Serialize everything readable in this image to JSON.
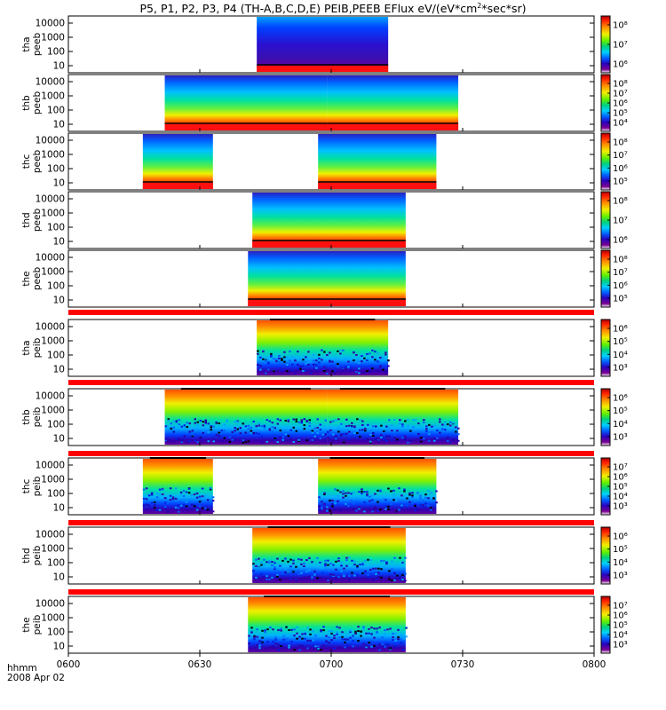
{
  "title": "P5, P1, P2, P3, P4 (TH-A,B,C,D,E) PEIB,PEEB EFlux eV/(eV*cm",
  "title_sup": "2",
  "title_end": "*sec*sr)",
  "xaxis": {
    "unit_label": "hhmm",
    "date_label": "2008 Apr 02",
    "range_minutes": [
      0,
      120
    ],
    "ticks": [
      {
        "label": "0600",
        "minute": 0
      },
      {
        "label": "0630",
        "minute": 30
      },
      {
        "label": "0700",
        "minute": 60
      },
      {
        "label": "0730",
        "minute": 90
      },
      {
        "label": "0800",
        "minute": 120
      }
    ]
  },
  "colors": {
    "spectrum": [
      "#ffffff",
      "#7a0090",
      "#2a00d0",
      "#0040ff",
      "#00a0ff",
      "#00e0e0",
      "#00d040",
      "#80f000",
      "#f0f000",
      "#ff9000",
      "#ff2000",
      "#e00000"
    ],
    "separator": "#ff0000"
  },
  "chart_data": {
    "type": "heatmap",
    "panels": [
      {
        "id": "thapeeb",
        "label_line1": "tha",
        "label_line2": "peeb",
        "yticks": [
          "10000",
          "1000",
          "100",
          "10"
        ],
        "colorbar_ticks": [
          "10⁸",
          "10⁷",
          "10⁶"
        ],
        "intervals": [
          [
            43,
            73
          ]
        ],
        "style": "e"
      },
      {
        "id": "thbpeeb",
        "label_line1": "thb",
        "label_line2": "peeb",
        "yticks": [
          "10000",
          "1000",
          "100",
          "10"
        ],
        "colorbar_ticks": [
          "10⁸",
          "10⁷",
          "10⁶",
          "10⁵",
          "10⁴"
        ],
        "intervals": [
          [
            22,
            59
          ],
          [
            59,
            89
          ]
        ],
        "style": "e"
      },
      {
        "id": "thcpeeb",
        "label_line1": "thc",
        "label_line2": "peeb",
        "yticks": [
          "10000",
          "1000",
          "100",
          "10"
        ],
        "colorbar_ticks": [
          "10⁸",
          "10⁷",
          "10⁶",
          "10⁵"
        ],
        "intervals": [
          [
            17,
            33
          ],
          [
            57,
            84
          ]
        ],
        "style": "e"
      },
      {
        "id": "thdpeeb",
        "label_line1": "thd",
        "label_line2": "peeb",
        "yticks": [
          "10000",
          "1000",
          "100",
          "10"
        ],
        "colorbar_ticks": [
          "10⁸",
          "10⁷",
          "10⁶"
        ],
        "intervals": [
          [
            42,
            77
          ]
        ],
        "style": "e"
      },
      {
        "id": "thepeeb",
        "label_line1": "the",
        "label_line2": "peeb",
        "yticks": [
          "10000",
          "1000",
          "100",
          "10"
        ],
        "colorbar_ticks": [
          "10⁸",
          "10⁷",
          "10⁶",
          "10⁵"
        ],
        "intervals": [
          [
            41,
            77
          ]
        ],
        "style": "e"
      },
      {
        "id": "thapeib",
        "label_line1": "tha",
        "label_line2": "peib",
        "yticks": [
          "10000",
          "1000",
          "100",
          "10"
        ],
        "colorbar_ticks": [
          "10⁶",
          "10⁵",
          "10⁴",
          "10³"
        ],
        "intervals": [
          [
            43,
            73
          ]
        ],
        "style": "i"
      },
      {
        "id": "thbpeib",
        "label_line1": "thb",
        "label_line2": "peib",
        "yticks": [
          "10000",
          "1000",
          "100",
          "10"
        ],
        "colorbar_ticks": [
          "10⁶",
          "10⁵",
          "10⁴",
          "10³"
        ],
        "intervals": [
          [
            22,
            59
          ],
          [
            59,
            89
          ]
        ],
        "style": "i"
      },
      {
        "id": "thcpeib",
        "label_line1": "thc",
        "label_line2": "peib",
        "yticks": [
          "10000",
          "1000",
          "100",
          "10"
        ],
        "colorbar_ticks": [
          "10⁷",
          "10⁶",
          "10⁵",
          "10⁴",
          "10³"
        ],
        "intervals": [
          [
            17,
            33
          ],
          [
            57,
            84
          ]
        ],
        "style": "i"
      },
      {
        "id": "thdpeib",
        "label_line1": "thd",
        "label_line2": "peib",
        "yticks": [
          "10000",
          "1000",
          "100",
          "10"
        ],
        "colorbar_ticks": [
          "10⁶",
          "10⁵",
          "10⁴",
          "10³"
        ],
        "intervals": [
          [
            42,
            77
          ]
        ],
        "style": "i"
      },
      {
        "id": "thepeib",
        "label_line1": "the",
        "label_line2": "peib",
        "yticks": [
          "10000",
          "1000",
          "100",
          "10"
        ],
        "colorbar_ticks": [
          "10⁷",
          "10⁶",
          "10⁵",
          "10⁴",
          "10³"
        ],
        "intervals": [
          [
            41,
            77
          ]
        ],
        "style": "i"
      }
    ]
  }
}
